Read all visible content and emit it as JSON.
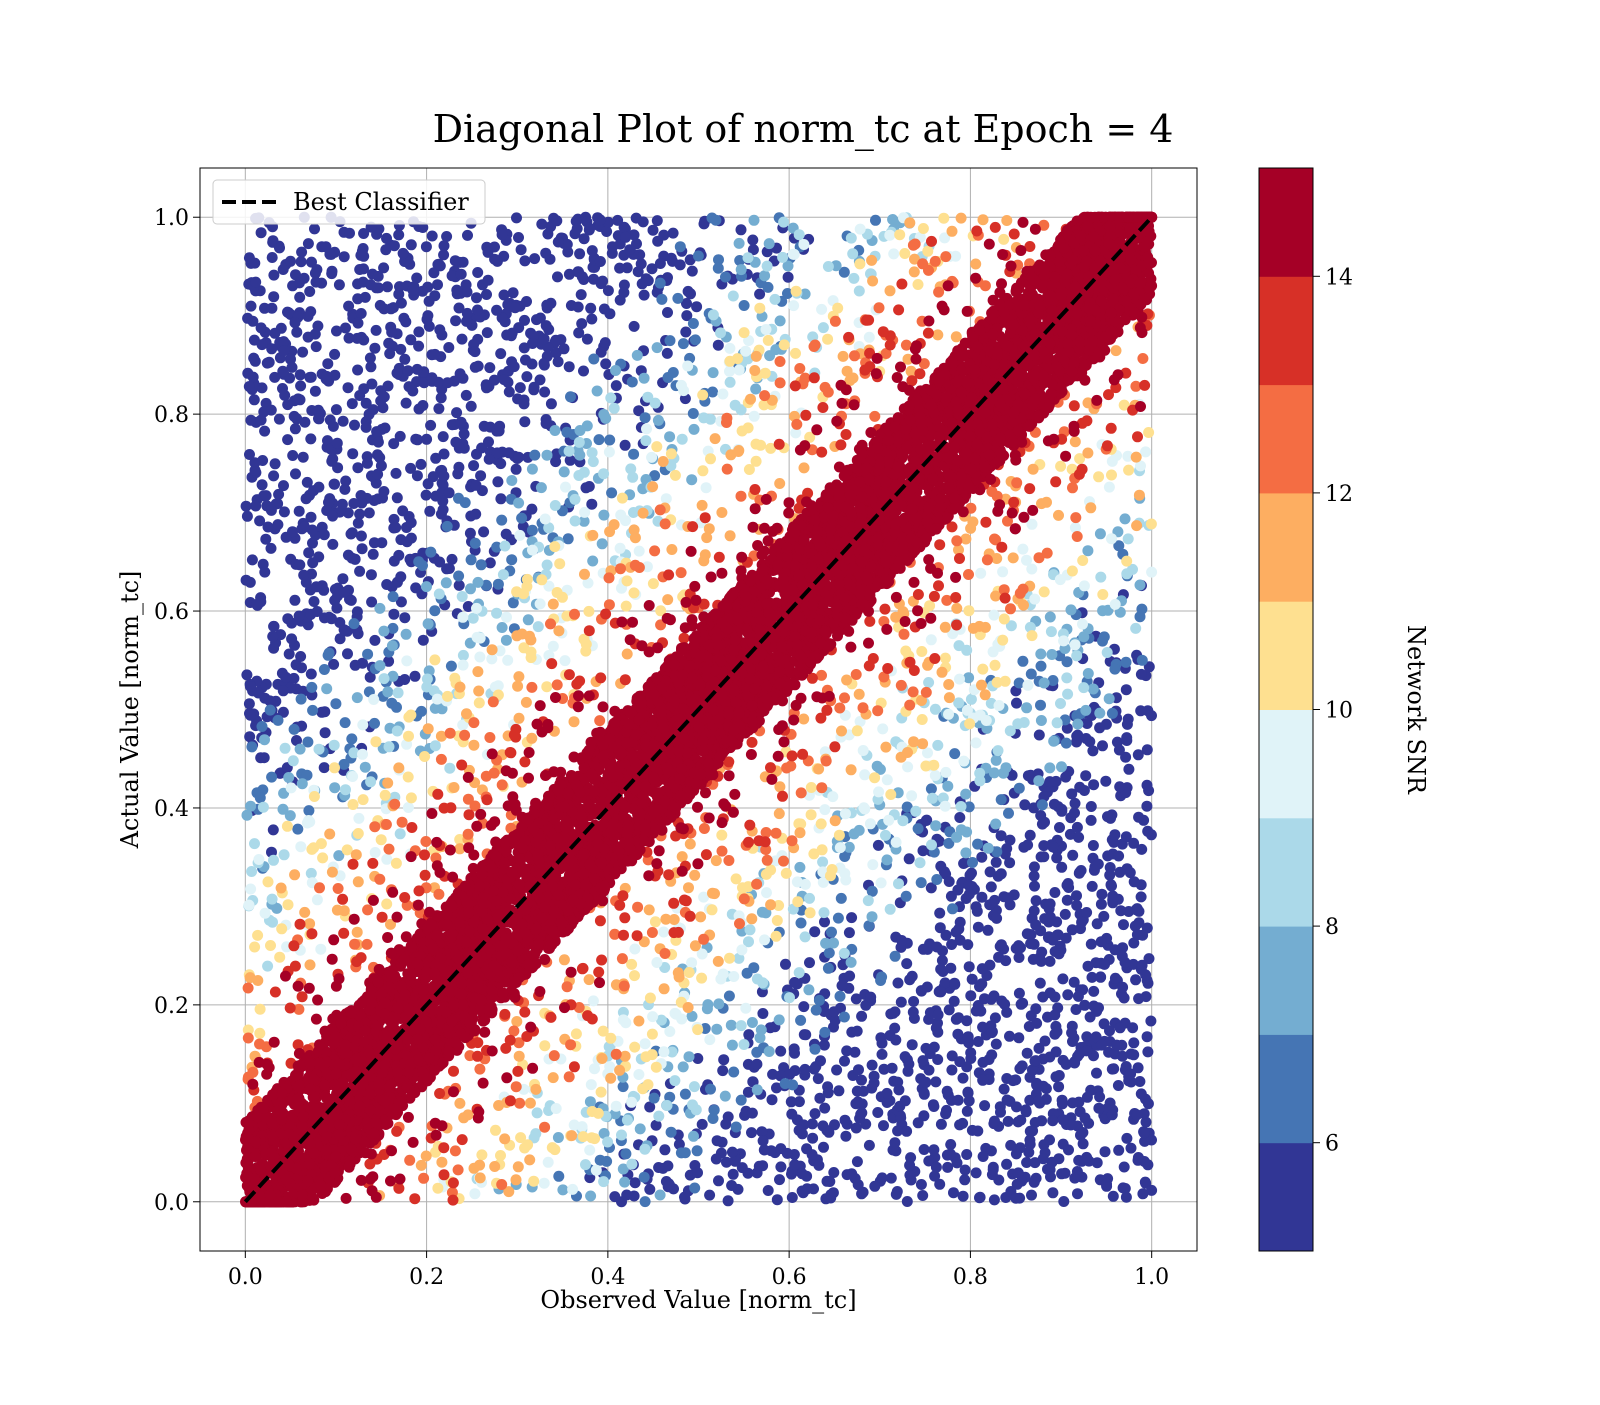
{
  "chart_data": {
    "type": "scatter",
    "title": "Diagonal Plot of norm_tc at Epoch = 4",
    "xlabel": "Observed Value [norm_tc]",
    "ylabel": "Actual Value [norm_tc]",
    "xlim": [
      -0.05,
      1.05
    ],
    "ylim": [
      -0.05,
      1.05
    ],
    "x_ticks": [
      "0.0",
      "0.2",
      "0.4",
      "0.6",
      "0.8",
      "1.0"
    ],
    "y_ticks": [
      "0.0",
      "0.2",
      "0.4",
      "0.6",
      "0.8",
      "1.0"
    ],
    "grid": true,
    "legend": {
      "placement": "upper-left",
      "entries": [
        {
          "label": "Best Classifier",
          "style": "dashed",
          "color": "#000000"
        }
      ]
    },
    "reference_line": {
      "from": [
        0,
        0
      ],
      "to": [
        1,
        1
      ]
    },
    "colorbar": {
      "label": "Network SNR",
      "range": [
        5,
        15
      ],
      "ticks": [
        "6",
        "8",
        "10",
        "12",
        "14"
      ],
      "colors": [
        "#313695",
        "#4575b4",
        "#74add1",
        "#abd9e9",
        "#e0f3f8",
        "#fee090",
        "#fdae61",
        "#f46d43",
        "#d73027",
        "#a50026"
      ]
    },
    "point_distribution": {
      "x_range": [
        0.0,
        1.0
      ],
      "y_range": [
        0.0,
        1.0
      ],
      "high_snr_band_halfwidth": 0.08,
      "point_count": 14000
    }
  }
}
